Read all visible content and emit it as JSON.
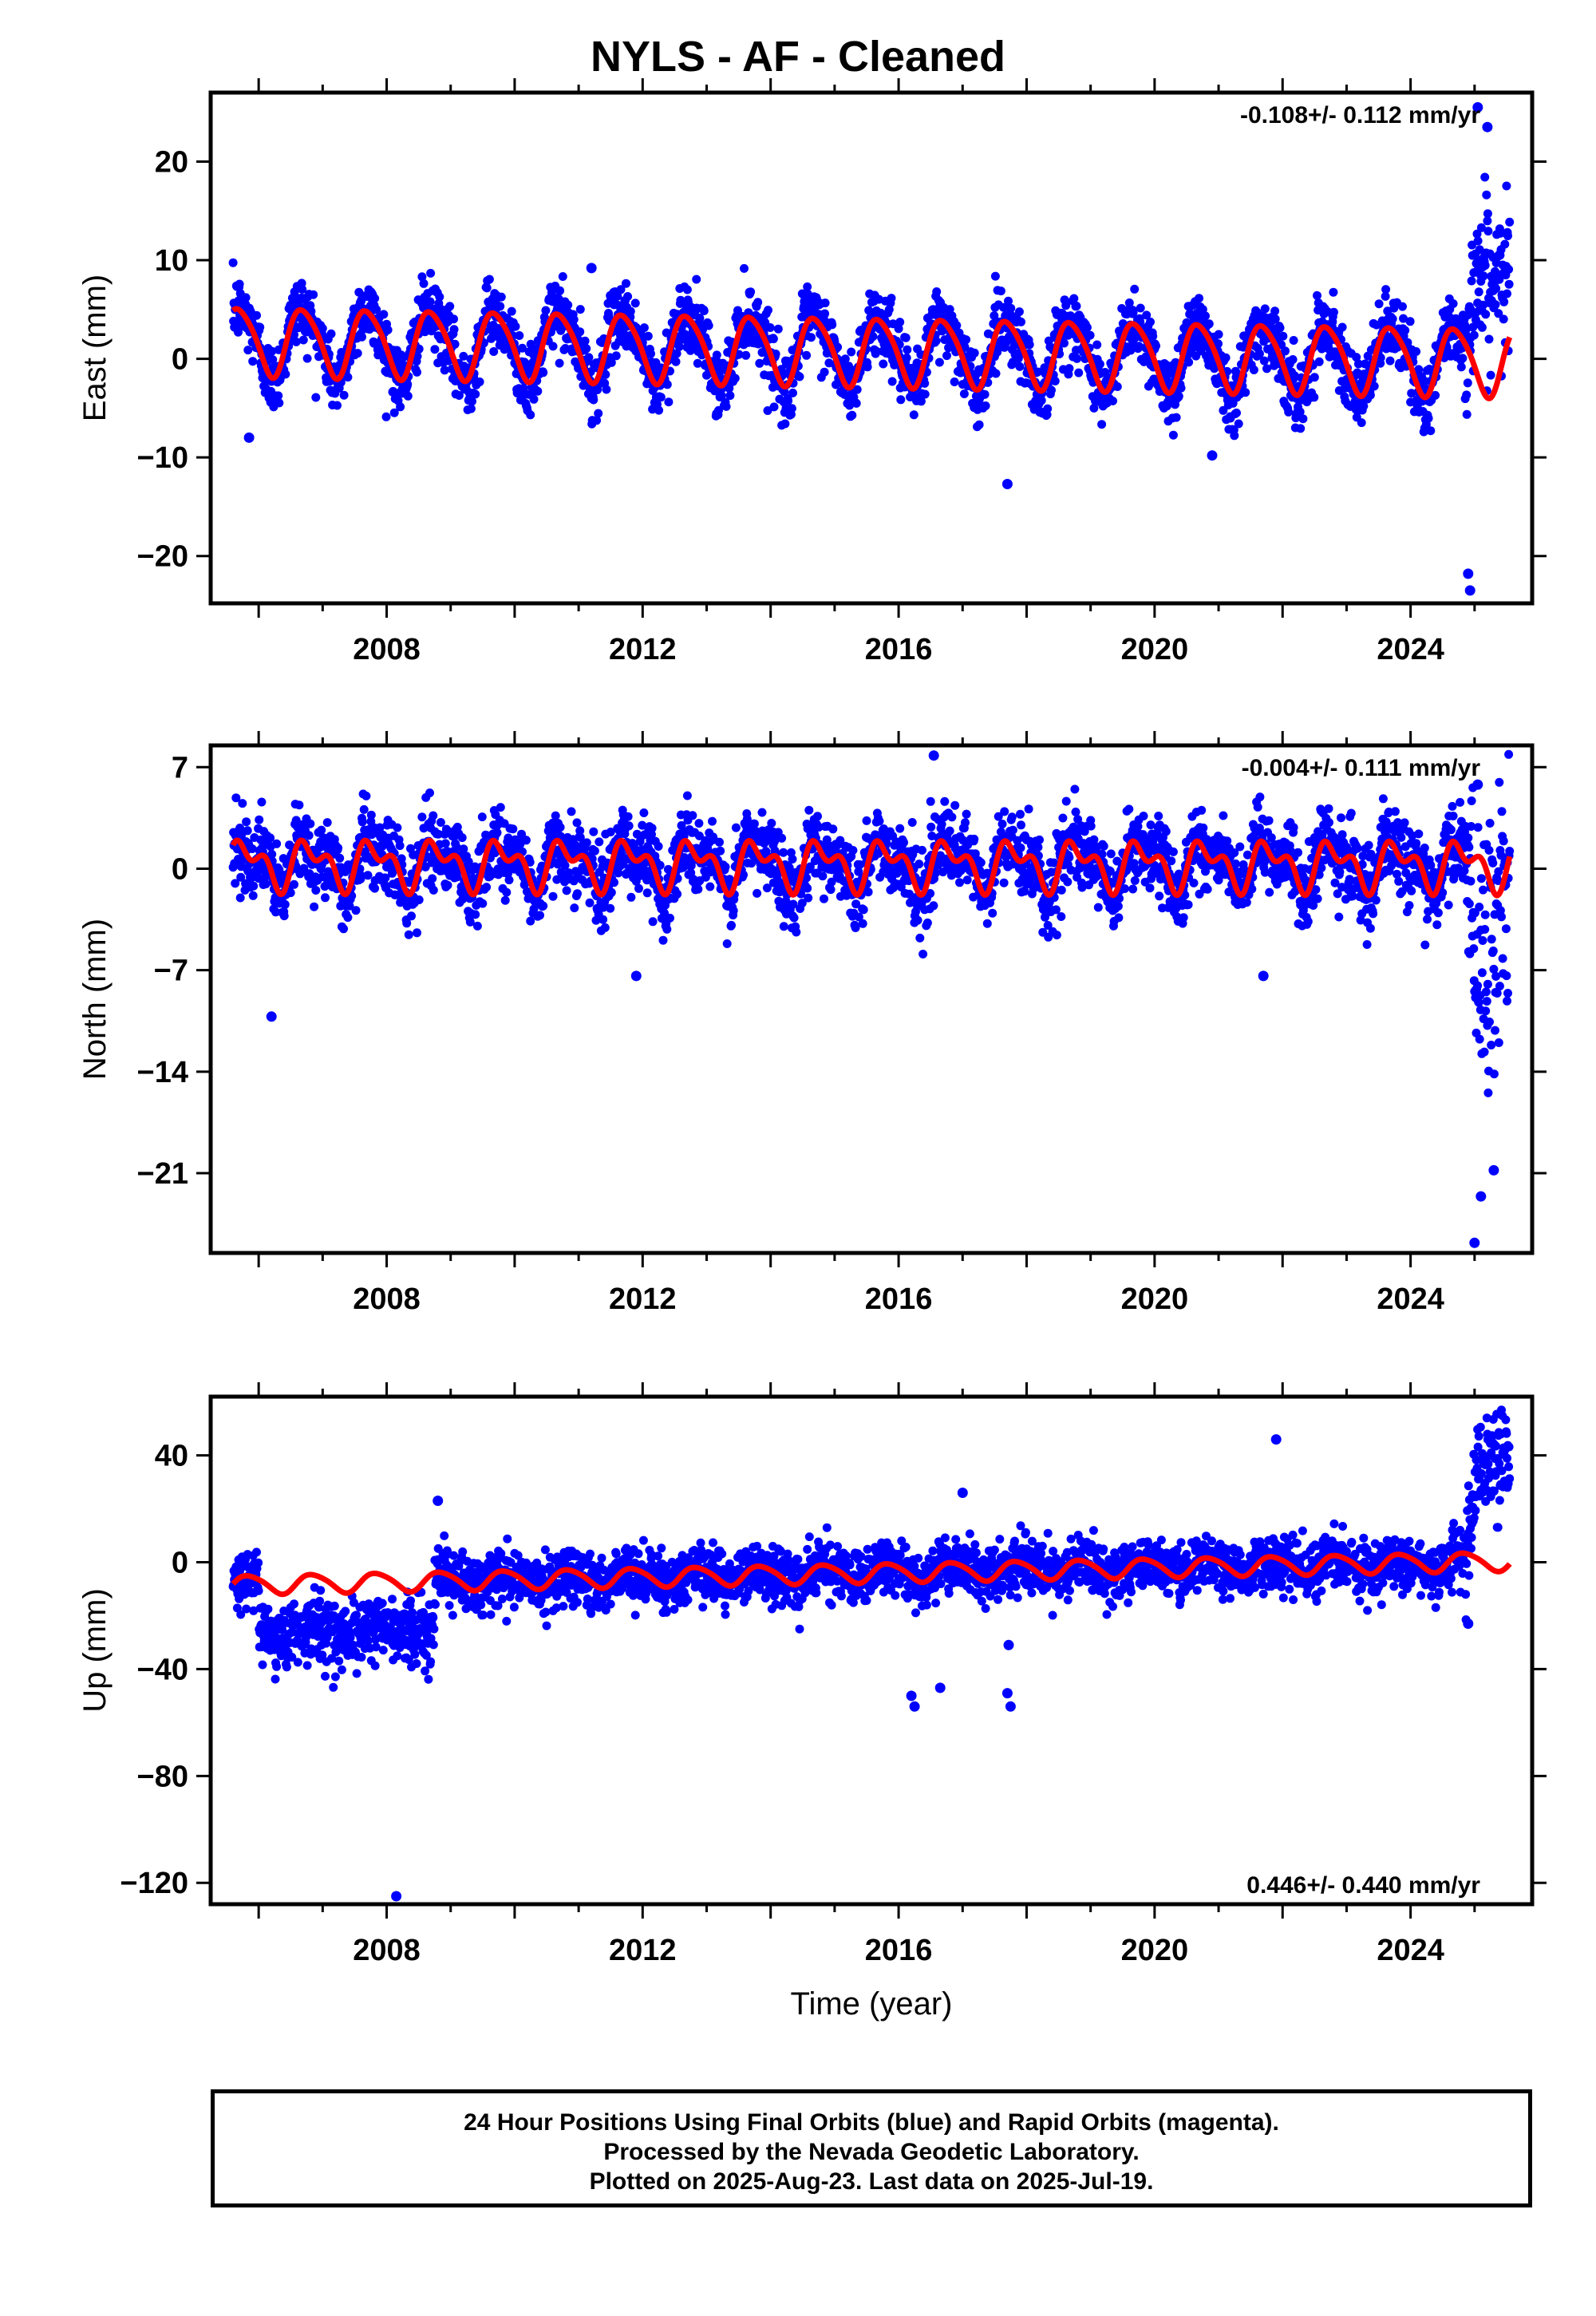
{
  "figure": {
    "title": "NYLS  - AF - Cleaned",
    "footer_lines": [
      "24 Hour Positions Using Final Orbits (blue) and Rapid Orbits (magenta).",
      "Processed by the Nevada Geodetic Laboratory.",
      "Plotted on 2025-Aug-23. Last data on 2025-Jul-19."
    ]
  },
  "colors": {
    "data_points": "#0000ff",
    "model_fit": "#ff0000",
    "frame": "#000000"
  },
  "chart_data": [
    {
      "type": "scatter",
      "component": "east",
      "ylabel": "East (mm)",
      "xlabel": "",
      "rate_text": "-0.108+/- 0.112 mm/yr",
      "rate_position": "top-right",
      "xlim": [
        2005.25,
        2025.9
      ],
      "ylim": [
        -24.8,
        27
      ],
      "x_ticks": [
        2008,
        2012,
        2016,
        2020,
        2024
      ],
      "x_tick_labels": [
        "2008",
        "2012",
        "2016",
        "2020",
        "2024"
      ],
      "y_ticks": [
        -20,
        -10,
        0,
        10,
        20
      ],
      "y_tick_labels": [
        "−20",
        "−10",
        "0",
        "10",
        "20"
      ],
      "data_start": 2005.6,
      "data_end": 2025.55,
      "seasonal": {
        "annual_amplitude": 3.5,
        "annual_phase_year": 0.45,
        "semiannual_amplitude": 0.6,
        "noise_sd": 1.7
      },
      "trend": {
        "rate_mm_per_yr": -0.108,
        "offset_mm": 0.8
      },
      "late_excursion": {
        "start": 2024.85,
        "peak": 10,
        "decay_end": 2025.55,
        "end_value": 7,
        "noise_sd": 4
      },
      "model_fit": {
        "annual_amplitude": 3.4,
        "semiannual_amplitude": 0.5
      },
      "outliers": [
        {
          "x": 2005.85,
          "y": -8
        },
        {
          "x": 2017.7,
          "y": -12.7
        },
        {
          "x": 2020.9,
          "y": -9.8
        },
        {
          "x": 2024.9,
          "y": -21.8
        },
        {
          "x": 2024.93,
          "y": -23.5
        },
        {
          "x": 2025.05,
          "y": 25.5
        },
        {
          "x": 2025.2,
          "y": 23.5
        },
        {
          "x": 2011.2,
          "y": 9.2
        }
      ]
    },
    {
      "type": "scatter",
      "component": "north",
      "ylabel": "North (mm)",
      "xlabel": "",
      "rate_text": "-0.004+/- 0.111 mm/yr",
      "rate_position": "top-right",
      "xlim": [
        2005.25,
        2025.9
      ],
      "ylim": [
        -26.5,
        8.5
      ],
      "x_ticks": [
        2008,
        2012,
        2016,
        2020,
        2024
      ],
      "x_tick_labels": [
        "2008",
        "2012",
        "2016",
        "2020",
        "2024"
      ],
      "y_ticks": [
        -21,
        -14,
        -7,
        0,
        7
      ],
      "y_tick_labels": [
        "−21",
        "−14",
        "−7",
        "0",
        "7"
      ],
      "data_start": 2005.6,
      "data_end": 2025.55,
      "seasonal": {
        "annual_amplitude": 1.4,
        "annual_phase_year": 0.55,
        "semiannual_amplitude": 0.8,
        "noise_sd": 1.3
      },
      "trend": {
        "rate_mm_per_yr": -0.004,
        "offset_mm": 0.3
      },
      "late_excursion": {
        "start": 2024.9,
        "peak": -14,
        "decay_end": 2025.55,
        "end_value": 0,
        "noise_sd": 5
      },
      "model_fit": {
        "annual_amplitude": 1.3,
        "semiannual_amplitude": 0.9
      },
      "outliers": [
        {
          "x": 2006.2,
          "y": -10.2
        },
        {
          "x": 2011.9,
          "y": -7.4
        },
        {
          "x": 2016.55,
          "y": 7.8
        },
        {
          "x": 2021.7,
          "y": -7.4
        },
        {
          "x": 2025.0,
          "y": -25.8
        },
        {
          "x": 2025.05,
          "y": 5.8
        },
        {
          "x": 2025.1,
          "y": -22.6
        },
        {
          "x": 2025.3,
          "y": -20.8
        }
      ]
    },
    {
      "type": "scatter",
      "component": "up",
      "ylabel": "Up (mm)",
      "xlabel": "Time (year)",
      "rate_text": "0.446+/- 0.440 mm/yr",
      "rate_position": "bottom-right",
      "xlim": [
        2005.25,
        2025.9
      ],
      "ylim": [
        -128,
        62
      ],
      "x_ticks": [
        2008,
        2012,
        2016,
        2020,
        2024
      ],
      "x_tick_labels": [
        "2008",
        "2012",
        "2016",
        "2020",
        "2024"
      ],
      "y_ticks": [
        -120,
        -80,
        -40,
        0,
        40
      ],
      "y_tick_labels": [
        "−120",
        "−80",
        "−40",
        "0",
        "40"
      ],
      "data_start": 2005.6,
      "data_end": 2025.55,
      "seasonal": {
        "annual_amplitude": 2.5,
        "annual_phase_year": 0.6,
        "semiannual_amplitude": 0.5,
        "noise_sd": 5
      },
      "trend": {
        "rate_mm_per_yr": 0.446,
        "offset_mm": -4
      },
      "early_offset": {
        "start": 2006.0,
        "end": 2008.75,
        "value": -18,
        "noise_sd": 6
      },
      "late_excursion": {
        "start": 2024.85,
        "peak": 35,
        "decay_end": 2025.55,
        "end_value": 38,
        "noise_sd": 9
      },
      "model_fit": {
        "annual_amplitude": 3.5,
        "semiannual_amplitude": 0.5
      },
      "outliers": [
        {
          "x": 2008.15,
          "y": -125
        },
        {
          "x": 2016.2,
          "y": -50
        },
        {
          "x": 2016.25,
          "y": -54
        },
        {
          "x": 2016.65,
          "y": -47
        },
        {
          "x": 2017.7,
          "y": -49
        },
        {
          "x": 2017.75,
          "y": -54
        },
        {
          "x": 2017.72,
          "y": -31
        },
        {
          "x": 2021.9,
          "y": 46
        },
        {
          "x": 2024.9,
          "y": -23
        },
        {
          "x": 2008.8,
          "y": 23
        },
        {
          "x": 2017.0,
          "y": 26
        }
      ]
    }
  ]
}
